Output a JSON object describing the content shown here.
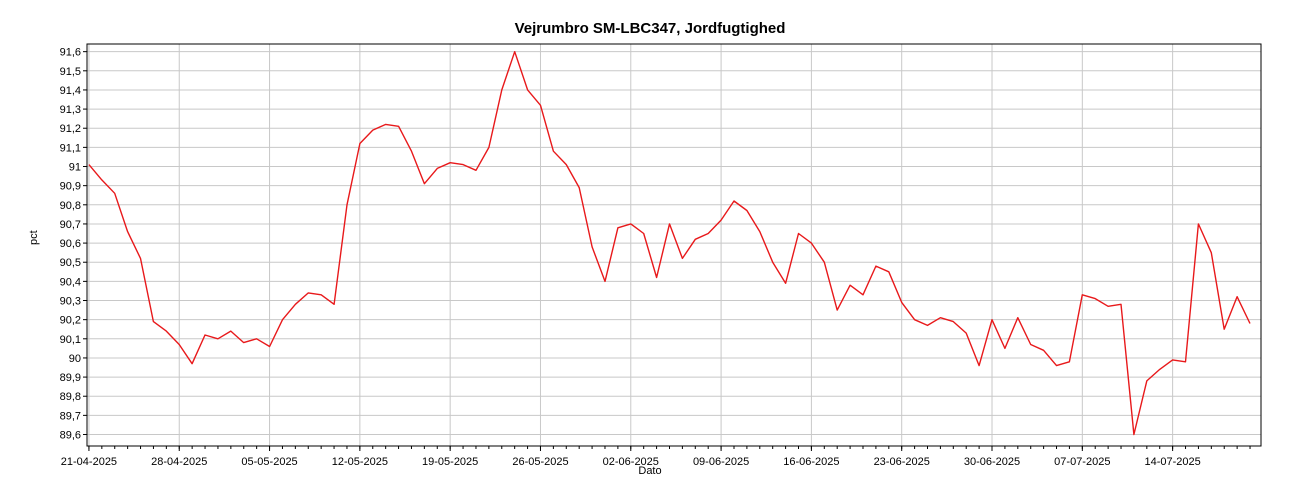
{
  "chart_data": {
    "type": "line",
    "title": "Vejrumbro SM-LBC347, Jordfugtighed",
    "xlabel": "Dato",
    "ylabel": "pct",
    "ylim": [
      89.54,
      91.64
    ],
    "y_ticks": [
      "89,6",
      "89,7",
      "89,8",
      "89,9",
      "90",
      "90,1",
      "90,2",
      "90,3",
      "90,4",
      "90,5",
      "90,6",
      "90,7",
      "90,8",
      "90,9",
      "91",
      "91,1",
      "91,2",
      "91,3",
      "91,4",
      "91,5",
      "91,6"
    ],
    "y_tick_values": [
      89.6,
      89.7,
      89.8,
      89.9,
      90.0,
      90.1,
      90.2,
      90.3,
      90.4,
      90.5,
      90.6,
      90.7,
      90.8,
      90.9,
      91.0,
      91.1,
      91.2,
      91.3,
      91.4,
      91.5,
      91.6
    ],
    "x_ticks": [
      "21-04-2025",
      "28-04-2025",
      "05-05-2025",
      "12-05-2025",
      "19-05-2025",
      "26-05-2025",
      "02-06-2025",
      "09-06-2025",
      "16-06-2025",
      "23-06-2025",
      "30-06-2025",
      "07-07-2025",
      "14-07-2025"
    ],
    "grid": true,
    "series": [
      {
        "color": "#e8191b",
        "x": [
          "2025-04-21",
          "2025-04-22",
          "2025-04-23",
          "2025-04-24",
          "2025-04-25",
          "2025-04-26",
          "2025-04-27",
          "2025-04-28",
          "2025-04-29",
          "2025-04-30",
          "2025-05-01",
          "2025-05-02",
          "2025-05-03",
          "2025-05-04",
          "2025-05-05",
          "2025-05-06",
          "2025-05-07",
          "2025-05-08",
          "2025-05-09",
          "2025-05-10",
          "2025-05-11",
          "2025-05-12",
          "2025-05-13",
          "2025-05-14",
          "2025-05-15",
          "2025-05-16",
          "2025-05-17",
          "2025-05-18",
          "2025-05-19",
          "2025-05-20",
          "2025-05-21",
          "2025-05-22",
          "2025-05-23",
          "2025-05-24",
          "2025-05-25",
          "2025-05-26",
          "2025-05-27",
          "2025-05-28",
          "2025-05-29",
          "2025-05-30",
          "2025-05-31",
          "2025-06-01",
          "2025-06-02",
          "2025-06-03",
          "2025-06-04",
          "2025-06-05",
          "2025-06-06",
          "2025-06-07",
          "2025-06-08",
          "2025-06-09",
          "2025-06-10",
          "2025-06-11",
          "2025-06-12",
          "2025-06-13",
          "2025-06-14",
          "2025-06-15",
          "2025-06-16",
          "2025-06-17",
          "2025-06-18",
          "2025-06-19",
          "2025-06-20",
          "2025-06-21",
          "2025-06-22",
          "2025-06-23",
          "2025-06-24",
          "2025-06-25",
          "2025-06-26",
          "2025-06-27",
          "2025-06-28",
          "2025-06-29",
          "2025-06-30",
          "2025-07-01",
          "2025-07-02",
          "2025-07-03",
          "2025-07-04",
          "2025-07-05",
          "2025-07-06",
          "2025-07-07",
          "2025-07-08",
          "2025-07-09",
          "2025-07-10",
          "2025-07-11",
          "2025-07-12",
          "2025-07-13",
          "2025-07-14",
          "2025-07-15",
          "2025-07-16",
          "2025-07-17",
          "2025-07-18",
          "2025-07-19",
          "2025-07-20"
        ],
        "y": [
          91.01,
          90.93,
          90.86,
          90.66,
          90.52,
          90.19,
          90.14,
          90.07,
          89.97,
          90.12,
          90.1,
          90.14,
          90.08,
          90.1,
          90.06,
          90.2,
          90.28,
          90.34,
          90.33,
          90.28,
          90.8,
          91.12,
          91.19,
          91.22,
          91.21,
          91.08,
          90.91,
          90.99,
          91.02,
          91.01,
          90.98,
          91.1,
          91.4,
          91.6,
          91.4,
          91.32,
          91.08,
          91.01,
          90.89,
          90.58,
          90.4,
          90.68,
          90.7,
          90.65,
          90.42,
          90.7,
          90.52,
          90.62,
          90.65,
          90.72,
          90.82,
          90.77,
          90.66,
          90.5,
          90.39,
          90.65,
          90.6,
          90.5,
          90.25,
          90.38,
          90.33,
          90.48,
          90.45,
          90.29,
          90.2,
          90.17,
          90.21,
          90.19,
          90.13,
          89.96,
          90.2,
          90.05,
          90.21,
          90.07,
          90.04,
          89.96,
          89.98,
          90.33,
          90.31,
          90.27,
          90.28,
          89.6,
          89.88,
          89.94,
          89.99,
          89.98,
          90.7,
          90.55,
          90.15,
          90.32,
          90.18
        ]
      }
    ]
  }
}
